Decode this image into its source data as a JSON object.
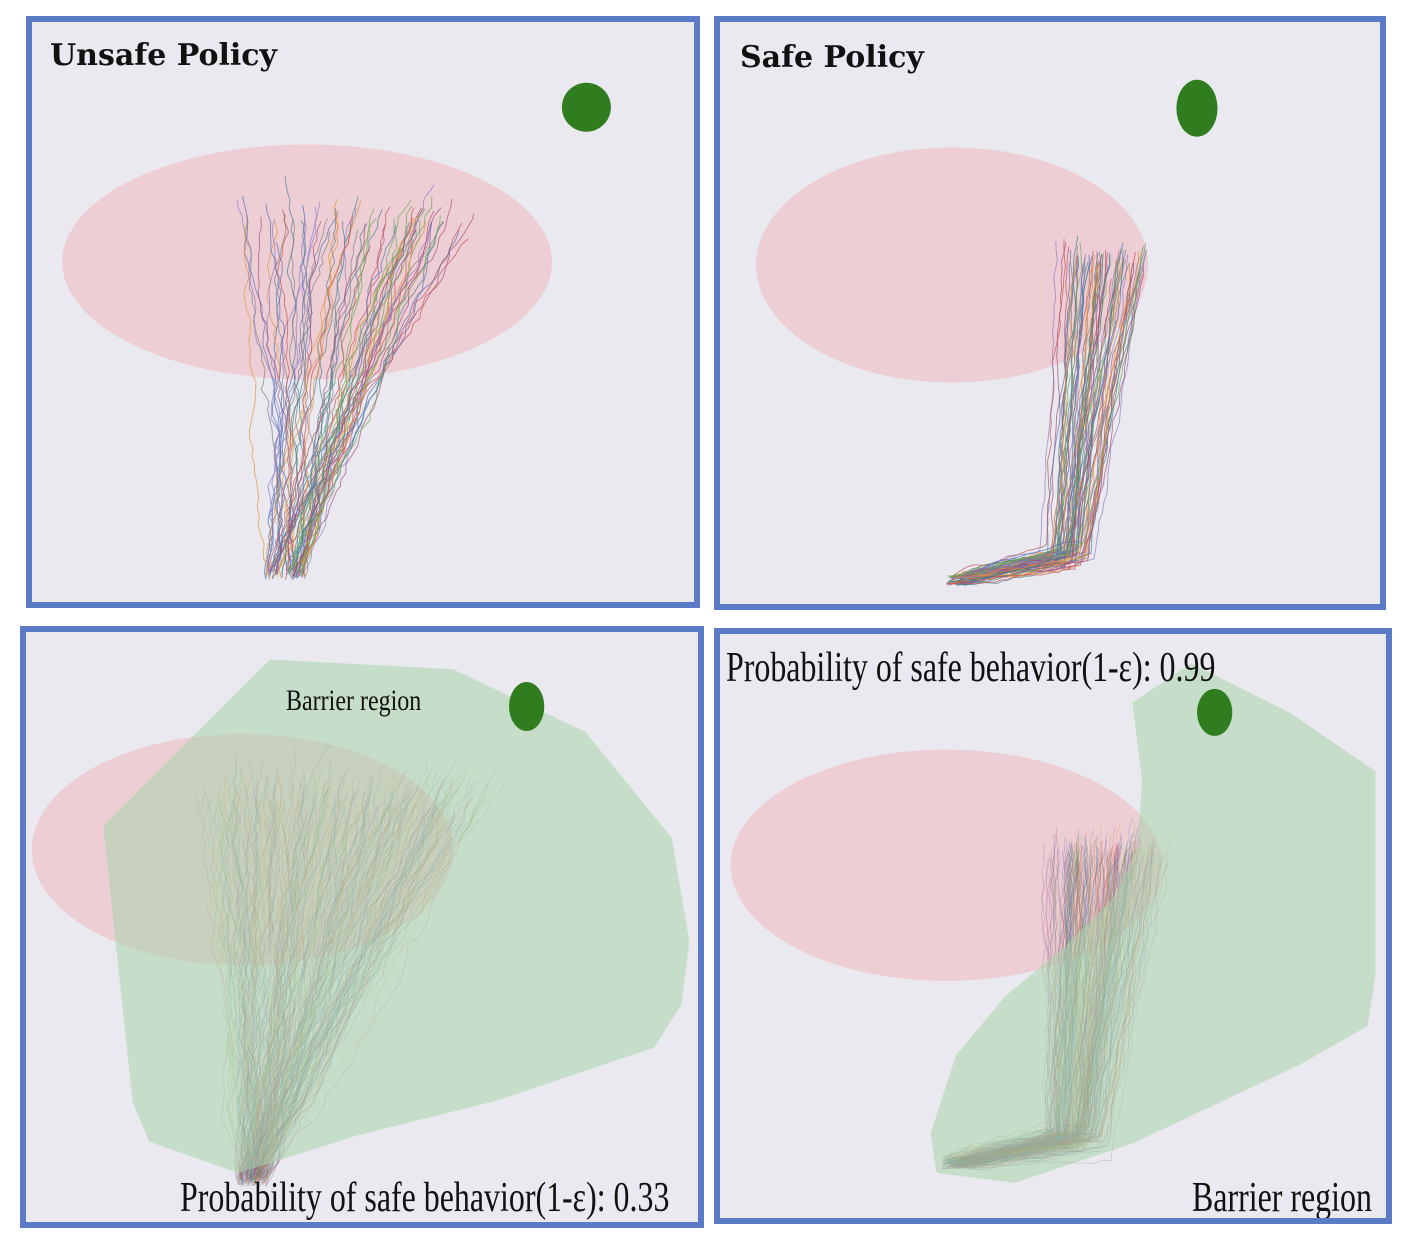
{
  "panels": {
    "top_left": {
      "title": "Unsafe Policy"
    },
    "top_right": {
      "title": "Safe Policy"
    },
    "bottom_left": {
      "barrier_label": "Barrier region",
      "probability_text": "Probability of safe behavior(1-ε): 0.33"
    },
    "bottom_right": {
      "barrier_label": "Barrier region",
      "probability_text": "Probability of safe behavior(1-ε): 0.99"
    }
  },
  "colors": {
    "frame": "#5b7bc6",
    "background": "#e9e9ef",
    "unsafe_region": "#f2b8c0",
    "goal": "#2f7d1f",
    "barrier": "#b5d8b5"
  },
  "legend_items": [
    "unsafe-region",
    "goal-marker",
    "trajectories",
    "barrier-region"
  ]
}
